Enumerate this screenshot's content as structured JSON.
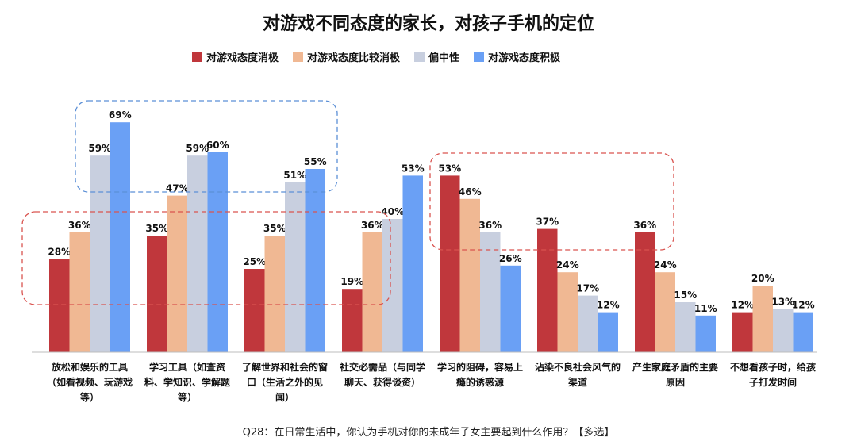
{
  "title": "对游戏不同态度的家长，对孩子手机的定位",
  "question": "Q28：在日常生活中，你认为手机对你的未成年子女主要起到什么作用？【多选】",
  "chart_data": {
    "type": "bar",
    "title": "对游戏不同态度的家长，对孩子手机的定位",
    "xlabel": "",
    "ylabel": "",
    "ylim": [
      0,
      100
    ],
    "categories": [
      "放松和娱乐的工具（如看视频、玩游戏等）",
      "学习工具（如查资料、学知识、学解题等）",
      "了解世界和社会的窗口（生活之外的见闻）",
      "社交必需品（与同学聊天、获得谈资）",
      "学习的阻碍，容易上瘾的诱惑源",
      "沾染不良社会风气的渠道",
      "产生家庭矛盾的主要原因",
      "不想看孩子时，给孩子打发时间"
    ],
    "series": [
      {
        "name": "对游戏态度消极",
        "color": "#c0373c",
        "values": [
          28,
          35,
          25,
          19,
          53,
          37,
          36,
          12
        ]
      },
      {
        "name": "对游戏态度比较消极",
        "color": "#f0b893",
        "values": [
          36,
          47,
          35,
          36,
          46,
          24,
          24,
          20
        ]
      },
      {
        "name": "偏中性",
        "color": "#c8cfdf",
        "values": [
          59,
          59,
          51,
          40,
          36,
          17,
          15,
          13
        ]
      },
      {
        "name": "对游戏态度积极",
        "color": "#6aa0f5",
        "values": [
          69,
          60,
          55,
          53,
          26,
          12,
          11,
          12
        ]
      }
    ],
    "value_suffix": "%",
    "grid": false,
    "legend_position": "top-center"
  }
}
